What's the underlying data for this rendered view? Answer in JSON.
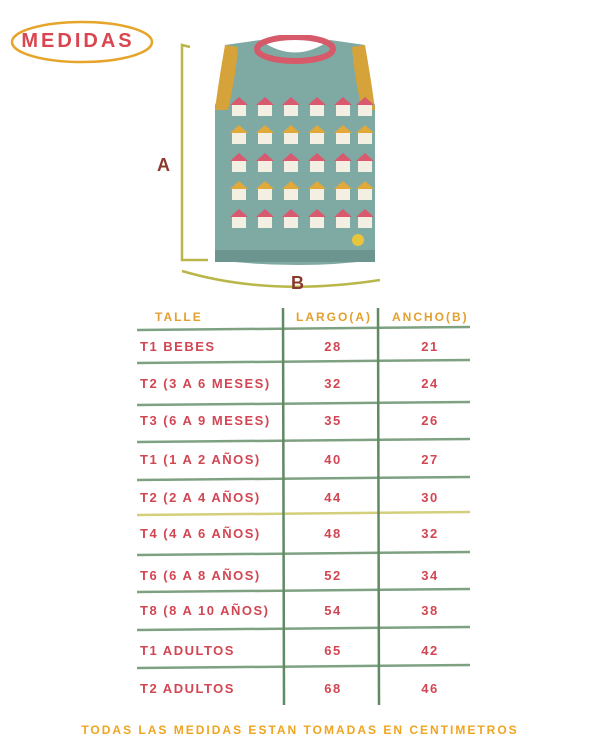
{
  "title": "MEDIDAS",
  "diagram": {
    "label_a": "A",
    "label_b": "B"
  },
  "table": {
    "headers": [
      "TALLE",
      "LARGO(A)",
      "ANCHO(B)"
    ],
    "rows": [
      {
        "talle": "T1 BEBES",
        "largo": "28",
        "ancho": "21"
      },
      {
        "talle": "T2 (3 A 6 MESES)",
        "largo": "32",
        "ancho": "24"
      },
      {
        "talle": "T3 (6 A 9 MESES)",
        "largo": "35",
        "ancho": "26"
      },
      {
        "talle": "T1 (1 A 2 AÑOS)",
        "largo": "40",
        "ancho": "27"
      },
      {
        "talle": "T2 (2 A 4 AÑOS)",
        "largo": "44",
        "ancho": "30"
      },
      {
        "talle": "T4 (4 A 6 AÑOS)",
        "largo": "48",
        "ancho": "32"
      },
      {
        "talle": "T6 (6 A 8 AÑOS)",
        "largo": "52",
        "ancho": "34"
      },
      {
        "talle": "T8 (8 A 10 AÑOS)",
        "largo": "54",
        "ancho": "38"
      },
      {
        "talle": "T1 ADULTOS",
        "largo": "65",
        "ancho": "42"
      },
      {
        "talle": "T2 ADULTOS",
        "largo": "68",
        "ancho": "46"
      }
    ]
  },
  "footer": "TODAS LAS MEDIDAS ESTAN TOMADAS EN CENTIMETROS",
  "colors": {
    "text_red": "#d24653",
    "header_orange": "#e3a02f",
    "line_green": "#5f8a63",
    "vest_teal": "#7fa9a3"
  }
}
